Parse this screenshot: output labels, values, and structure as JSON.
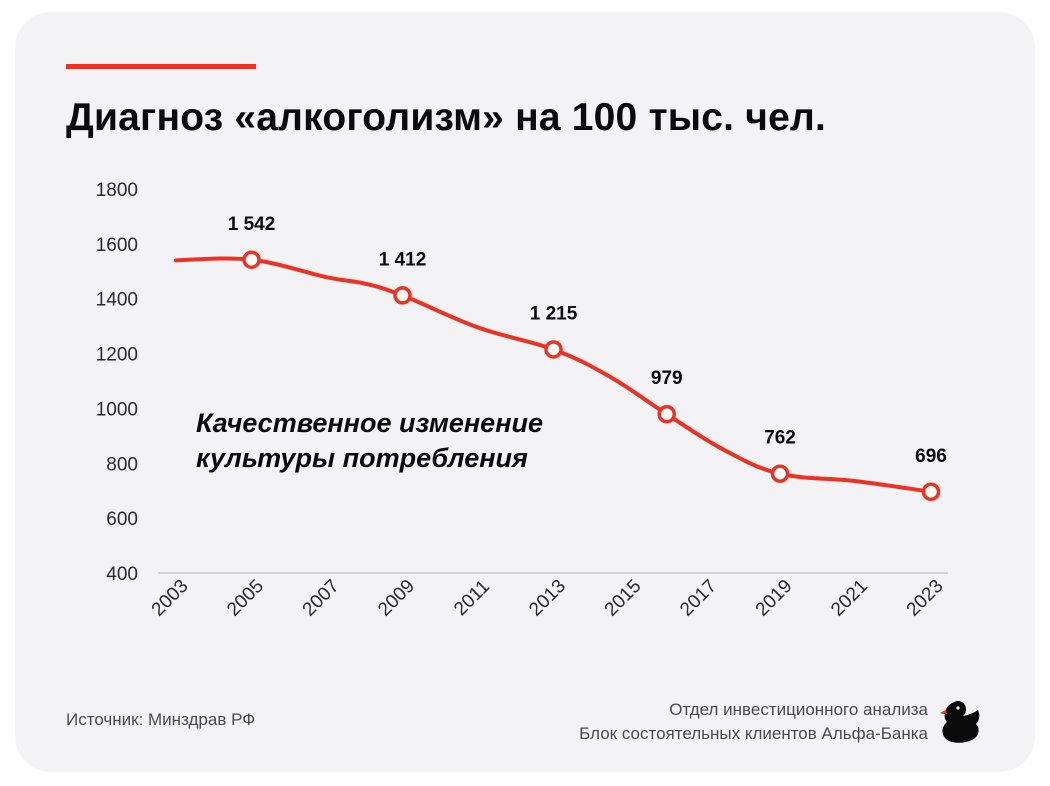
{
  "title": "Диагноз «алкоголизм» на 100 тыс. чел.",
  "annotation": [
    "Качественное изменение",
    "культуры потребления"
  ],
  "footer": {
    "source": "Источник: Минздрав РФ",
    "credit_line1": "Отдел инвестиционного анализа",
    "credit_line2": "Блок состоятельных клиентов Альфа-Банка"
  },
  "colors": {
    "accent": "#ef3124",
    "card": "#f3f2f5",
    "text": "#0b0b0b"
  },
  "chart_data": {
    "type": "line",
    "title": "Диагноз «алкоголизм» на 100 тыс. чел.",
    "xlabel": "",
    "ylabel": "",
    "ylim": [
      400,
      1800
    ],
    "yticks": [
      400,
      600,
      800,
      1000,
      1200,
      1400,
      1600,
      1800
    ],
    "xticks": [
      "2003",
      "2005",
      "2007",
      "2009",
      "2011",
      "2013",
      "2015",
      "2017",
      "2019",
      "2021",
      "2023"
    ],
    "xlim": [
      2003,
      2023
    ],
    "grid": false,
    "line": [
      {
        "x": 2003,
        "y": 1540
      },
      {
        "x": 2005,
        "y": 1542
      },
      {
        "x": 2007,
        "y": 1478
      },
      {
        "x": 2008,
        "y": 1455
      },
      {
        "x": 2009,
        "y": 1412
      },
      {
        "x": 2011,
        "y": 1295
      },
      {
        "x": 2013,
        "y": 1215
      },
      {
        "x": 2014.5,
        "y": 1115
      },
      {
        "x": 2016,
        "y": 979
      },
      {
        "x": 2017.5,
        "y": 850
      },
      {
        "x": 2019,
        "y": 762
      },
      {
        "x": 2021,
        "y": 735
      },
      {
        "x": 2023,
        "y": 696
      }
    ],
    "markers": [
      {
        "x": 2005,
        "y": 1542,
        "label": "1 542"
      },
      {
        "x": 2009,
        "y": 1412,
        "label": "1 412"
      },
      {
        "x": 2013,
        "y": 1215,
        "label": "1 215"
      },
      {
        "x": 2016,
        "y": 979,
        "label": "979"
      },
      {
        "x": 2019,
        "y": 762,
        "label": "762"
      },
      {
        "x": 2023,
        "y": 696,
        "label": "696"
      }
    ]
  }
}
